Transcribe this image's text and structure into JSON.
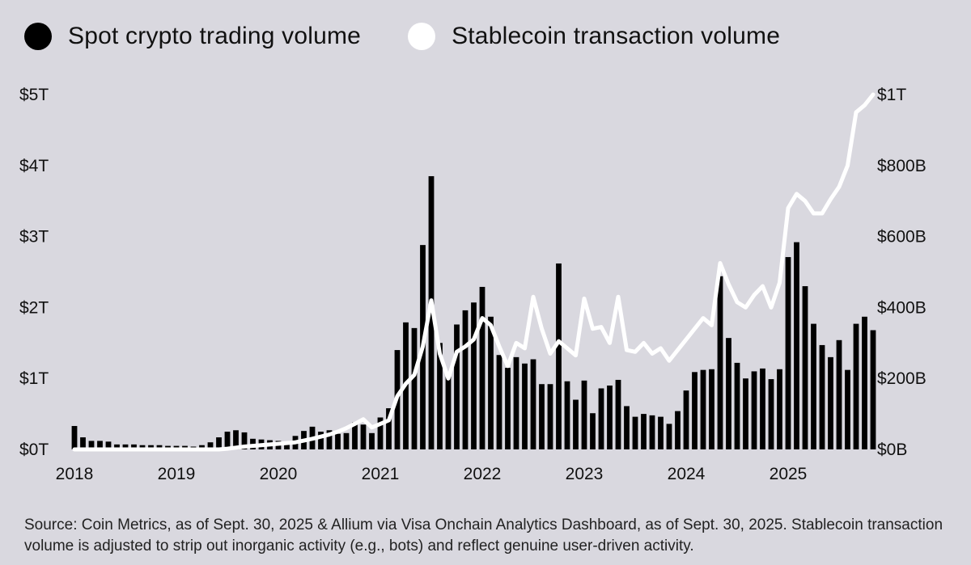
{
  "legend": [
    {
      "label": "Spot crypto trading volume",
      "color": "#000000"
    },
    {
      "label": "Stablecoin transaction volume",
      "color": "#ffffff"
    }
  ],
  "source": "Source: Coin Metrics, as of Sept. 30, 2025 & Allium via Visa Onchain Analytics Dashboard, as of Sept. 30, 2025. Stablecoin transaction volume is adjusted to strip out inorganic activity (e.g., bots) and reflect genuine user-driven activity.",
  "chart_data": {
    "type": "bar",
    "background": "#d9d8df",
    "x_start": "2018-01",
    "x_tick_labels": [
      "2018",
      "2019",
      "2020",
      "2021",
      "2022",
      "2023",
      "2024",
      "2025"
    ],
    "y_left": {
      "min": 0,
      "max": 5,
      "tick_values": [
        0,
        1,
        2,
        3,
        4,
        5
      ],
      "tick_labels": [
        "$0T",
        "$1T",
        "$2T",
        "$3T",
        "$4T",
        "$5T"
      ]
    },
    "y_right": {
      "min": 0,
      "max": 1000,
      "tick_values": [
        0,
        200,
        400,
        600,
        800,
        1000
      ],
      "tick_labels": [
        "$0B",
        "$200B",
        "$400B",
        "$600B",
        "$800B",
        "$1T"
      ]
    },
    "grid": false,
    "series": [
      {
        "name": "Spot crypto trading volume",
        "kind": "bar",
        "axis": "left",
        "color": "#000000",
        "values": [
          0.33,
          0.17,
          0.12,
          0.12,
          0.11,
          0.07,
          0.07,
          0.07,
          0.06,
          0.06,
          0.06,
          0.05,
          0.05,
          0.05,
          0.04,
          0.06,
          0.1,
          0.17,
          0.25,
          0.27,
          0.24,
          0.15,
          0.14,
          0.13,
          0.12,
          0.11,
          0.19,
          0.26,
          0.32,
          0.25,
          0.27,
          0.22,
          0.23,
          0.38,
          0.35,
          0.23,
          0.45,
          0.58,
          1.4,
          1.79,
          1.71,
          2.88,
          3.85,
          1.5,
          1.05,
          1.76,
          1.96,
          2.07,
          2.29,
          1.87,
          1.33,
          1.15,
          1.3,
          1.21,
          1.27,
          0.92,
          0.92,
          2.62,
          0.96,
          0.7,
          0.97,
          0.51,
          0.86,
          0.9,
          0.98,
          0.61,
          0.46,
          0.5,
          0.48,
          0.46,
          0.36,
          0.54,
          0.83,
          1.09,
          1.12,
          1.13,
          2.44,
          1.57,
          1.22,
          1.0,
          1.1,
          1.14,
          0.99,
          1.13,
          2.71,
          2.92,
          2.3,
          1.77,
          1.47,
          1.3,
          1.54,
          1.12,
          1.77,
          1.87,
          1.68
        ]
      },
      {
        "name": "Stablecoin transaction volume",
        "kind": "line",
        "axis": "right",
        "color": "#ffffff",
        "values": [
          0,
          0,
          0,
          0,
          0,
          0,
          0,
          0,
          0,
          0,
          0,
          0,
          0,
          0,
          0,
          0,
          0,
          0,
          2,
          5,
          8,
          10,
          12,
          14,
          16,
          18,
          20,
          25,
          30,
          36,
          42,
          50,
          60,
          72,
          85,
          62,
          72,
          82,
          150,
          185,
          210,
          290,
          420,
          270,
          200,
          275,
          290,
          310,
          370,
          350,
          290,
          235,
          300,
          285,
          430,
          340,
          270,
          305,
          285,
          265,
          425,
          340,
          345,
          300,
          430,
          280,
          275,
          300,
          270,
          285,
          250,
          280,
          310,
          340,
          370,
          350,
          525,
          465,
          415,
          400,
          435,
          460,
          400,
          470,
          680,
          720,
          700,
          665,
          665,
          705,
          740,
          800,
          950,
          970,
          1000
        ]
      }
    ]
  }
}
